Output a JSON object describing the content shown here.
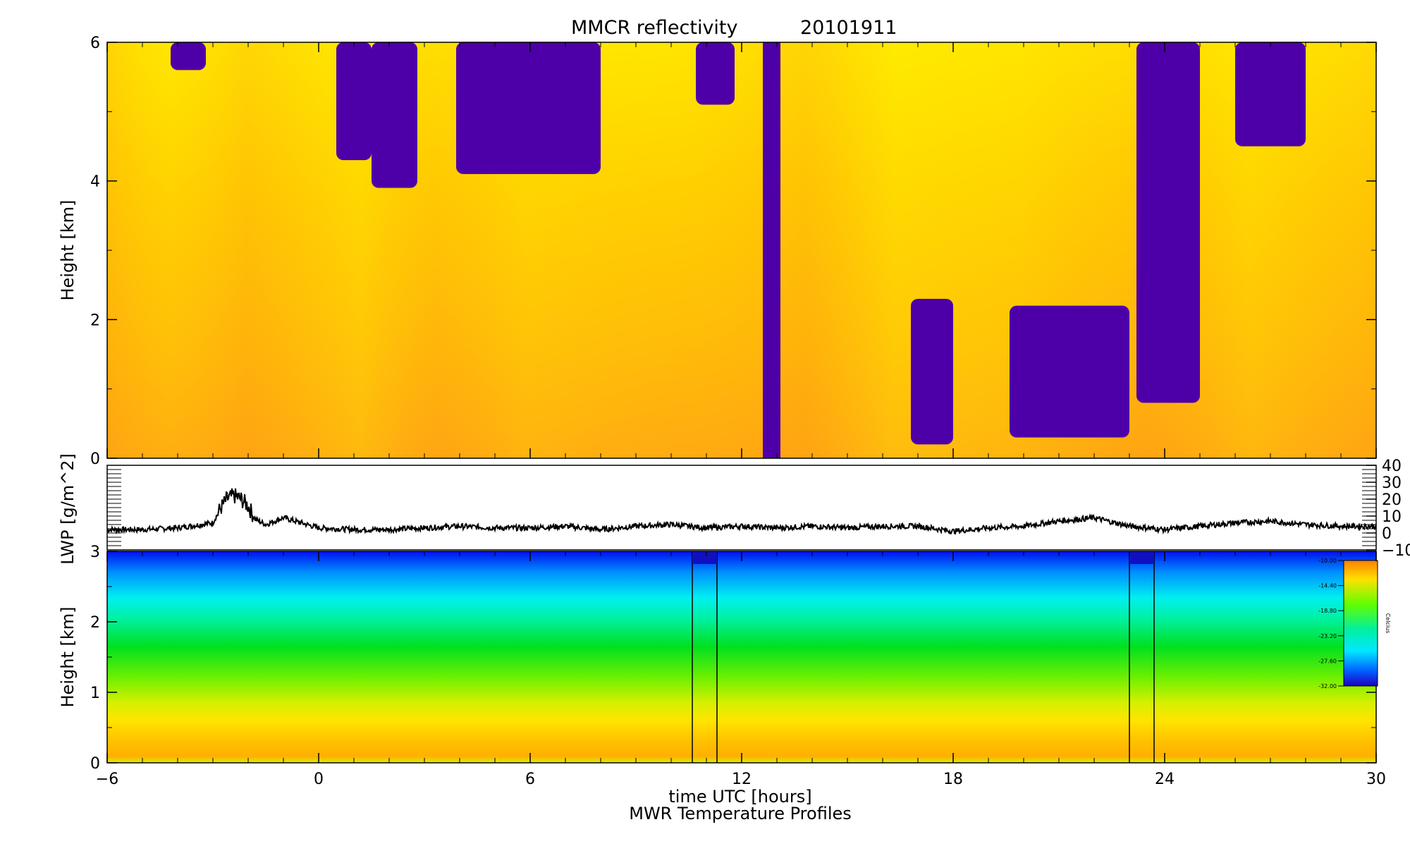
{
  "title": "MMCR reflectivity",
  "date": "20101911",
  "x_axis": {
    "label": "time UTC [hours]",
    "ticks": [
      "−6",
      "0",
      "6",
      "12",
      "18",
      "24",
      "30"
    ],
    "tick_values": [
      -6,
      0,
      6,
      12,
      18,
      24,
      30
    ],
    "range": [
      -6,
      30
    ]
  },
  "footer_text": "MWR Temperature Profiles",
  "colors": {
    "reflectivity_low": "#ffee00",
    "reflectivity_high": "#ff9f10",
    "no_echo": "#4e00a8",
    "lwp_line": "#000000"
  },
  "chart_data": [
    {
      "type": "heatmap",
      "name": "reflectivity",
      "ylabel": "Height [km]",
      "yticks": [
        "0",
        "2",
        "4",
        "6"
      ],
      "ytick_values": [
        0,
        2,
        4,
        6
      ],
      "ylim": [
        0,
        6
      ],
      "xlim": [
        -6,
        30
      ],
      "no_echo_regions": [
        {
          "t0": 12.6,
          "t1": 13.1,
          "h0": 0,
          "h1": 6
        },
        {
          "t0": 16.8,
          "t1": 18.0,
          "h0": 0.2,
          "h1": 2.3
        },
        {
          "t0": 19.6,
          "t1": 23.0,
          "h0": 0.3,
          "h1": 2.2
        },
        {
          "t0": 3.9,
          "t1": 8.0,
          "h0": 4.1,
          "h1": 6
        },
        {
          "t0": 1.5,
          "t1": 2.8,
          "h0": 3.9,
          "h1": 6
        },
        {
          "t0": 0.5,
          "t1": 1.5,
          "h0": 4.3,
          "h1": 6
        },
        {
          "t0": 23.2,
          "t1": 25.0,
          "h0": 0.8,
          "h1": 6
        },
        {
          "t0": 26.0,
          "t1": 28.0,
          "h0": 4.5,
          "h1": 6
        },
        {
          "t0": -4.2,
          "t1": -3.2,
          "h0": 5.6,
          "h1": 6
        },
        {
          "t0": 10.7,
          "t1": 11.8,
          "h0": 5.1,
          "h1": 6
        }
      ]
    },
    {
      "type": "line",
      "name": "LWP",
      "ylabel": "LWP [g/m^2]",
      "yticks": [
        "−10",
        "0",
        "10",
        "20",
        "30",
        "40"
      ],
      "ytick_values": [
        -10,
        0,
        10,
        20,
        30,
        40
      ],
      "ylim": [
        -10,
        40
      ],
      "x": [
        -6,
        -5,
        -4,
        -3,
        -2.8,
        -2.6,
        -2.4,
        -2.2,
        -2.0,
        -1.8,
        -1.5,
        -1.0,
        -0.5,
        0,
        1,
        2,
        3,
        4,
        5,
        6,
        7,
        8,
        9,
        10,
        11,
        12,
        13,
        14,
        15,
        16,
        17,
        18,
        19,
        20,
        21,
        22,
        23,
        24,
        25,
        26,
        27,
        28,
        29,
        30
      ],
      "y": [
        2,
        2,
        3,
        6,
        14,
        20,
        22,
        20,
        16,
        8,
        5,
        9,
        6,
        3,
        2,
        2,
        3,
        4,
        3,
        3,
        4,
        2,
        4,
        5,
        3,
        4,
        3,
        4,
        3,
        4,
        4,
        1,
        3,
        4,
        7,
        9,
        4,
        2,
        4,
        6,
        7,
        5,
        4,
        4
      ]
    },
    {
      "type": "heatmap",
      "name": "MWR temperature profiles",
      "ylabel": "Height [km]",
      "yticks": [
        "0",
        "1",
        "2",
        "3"
      ],
      "ytick_values": [
        0,
        1,
        2,
        3
      ],
      "ylim": [
        0,
        3
      ],
      "xlim": [
        -6,
        30
      ],
      "vertical_lines": [
        10.6,
        11.3,
        23.0,
        23.7
      ],
      "colorbar": {
        "ticks": [
          "-10.00",
          "-14.40",
          "-18.80",
          "-23.20",
          "-27.60",
          "-32.00"
        ],
        "tick_values": [
          -10.0,
          -14.4,
          -18.8,
          -23.2,
          -27.6,
          -32.0
        ],
        "label": "Celcius",
        "range": [
          -32.0,
          -10.0
        ]
      }
    }
  ]
}
